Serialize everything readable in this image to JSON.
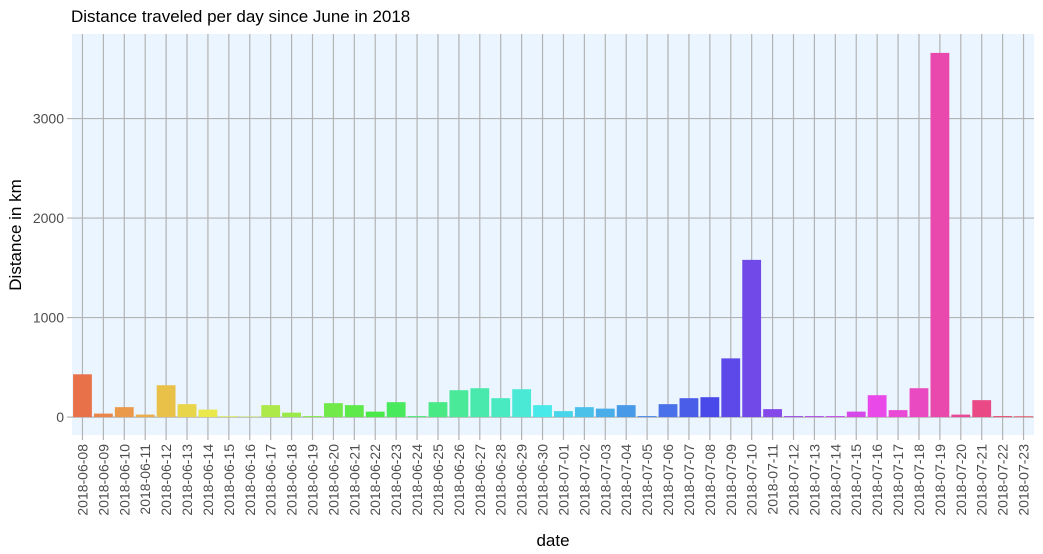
{
  "chart_data": {
    "type": "bar",
    "title": "Distance traveled per day since June in 2018",
    "xlabel": "date",
    "ylabel": "Distance in km",
    "ylim": [
      -180,
      3850
    ],
    "yticks": [
      0,
      1000,
      2000,
      3000
    ],
    "grid": true,
    "legend": "none",
    "colors": {
      "panel_bg": "#ebf5ff",
      "grid": "#b3b3b3",
      "tick": "#4d4d4d"
    },
    "categories": [
      "2018-06-08",
      "2018-06-09",
      "2018-06-10",
      "2018-06-11",
      "2018-06-12",
      "2018-06-13",
      "2018-06-14",
      "2018-06-15",
      "2018-06-16",
      "2018-06-17",
      "2018-06-18",
      "2018-06-19",
      "2018-06-20",
      "2018-06-21",
      "2018-06-22",
      "2018-06-23",
      "2018-06-24",
      "2018-06-25",
      "2018-06-26",
      "2018-06-27",
      "2018-06-28",
      "2018-06-29",
      "2018-06-30",
      "2018-07-01",
      "2018-07-02",
      "2018-07-03",
      "2018-07-04",
      "2018-07-05",
      "2018-07-06",
      "2018-07-07",
      "2018-07-08",
      "2018-07-09",
      "2018-07-10",
      "2018-07-11",
      "2018-07-12",
      "2018-07-13",
      "2018-07-14",
      "2018-07-15",
      "2018-07-16",
      "2018-07-17",
      "2018-07-18",
      "2018-07-19",
      "2018-07-20",
      "2018-07-21",
      "2018-07-22",
      "2018-07-23"
    ],
    "values": [
      430,
      35,
      100,
      25,
      320,
      130,
      75,
      8,
      5,
      120,
      45,
      10,
      140,
      120,
      55,
      150,
      10,
      150,
      270,
      290,
      190,
      280,
      120,
      60,
      100,
      85,
      120,
      10,
      130,
      190,
      200,
      590,
      1580,
      80,
      10,
      10,
      10,
      55,
      220,
      70,
      290,
      3660,
      25,
      170,
      10,
      8
    ]
  }
}
